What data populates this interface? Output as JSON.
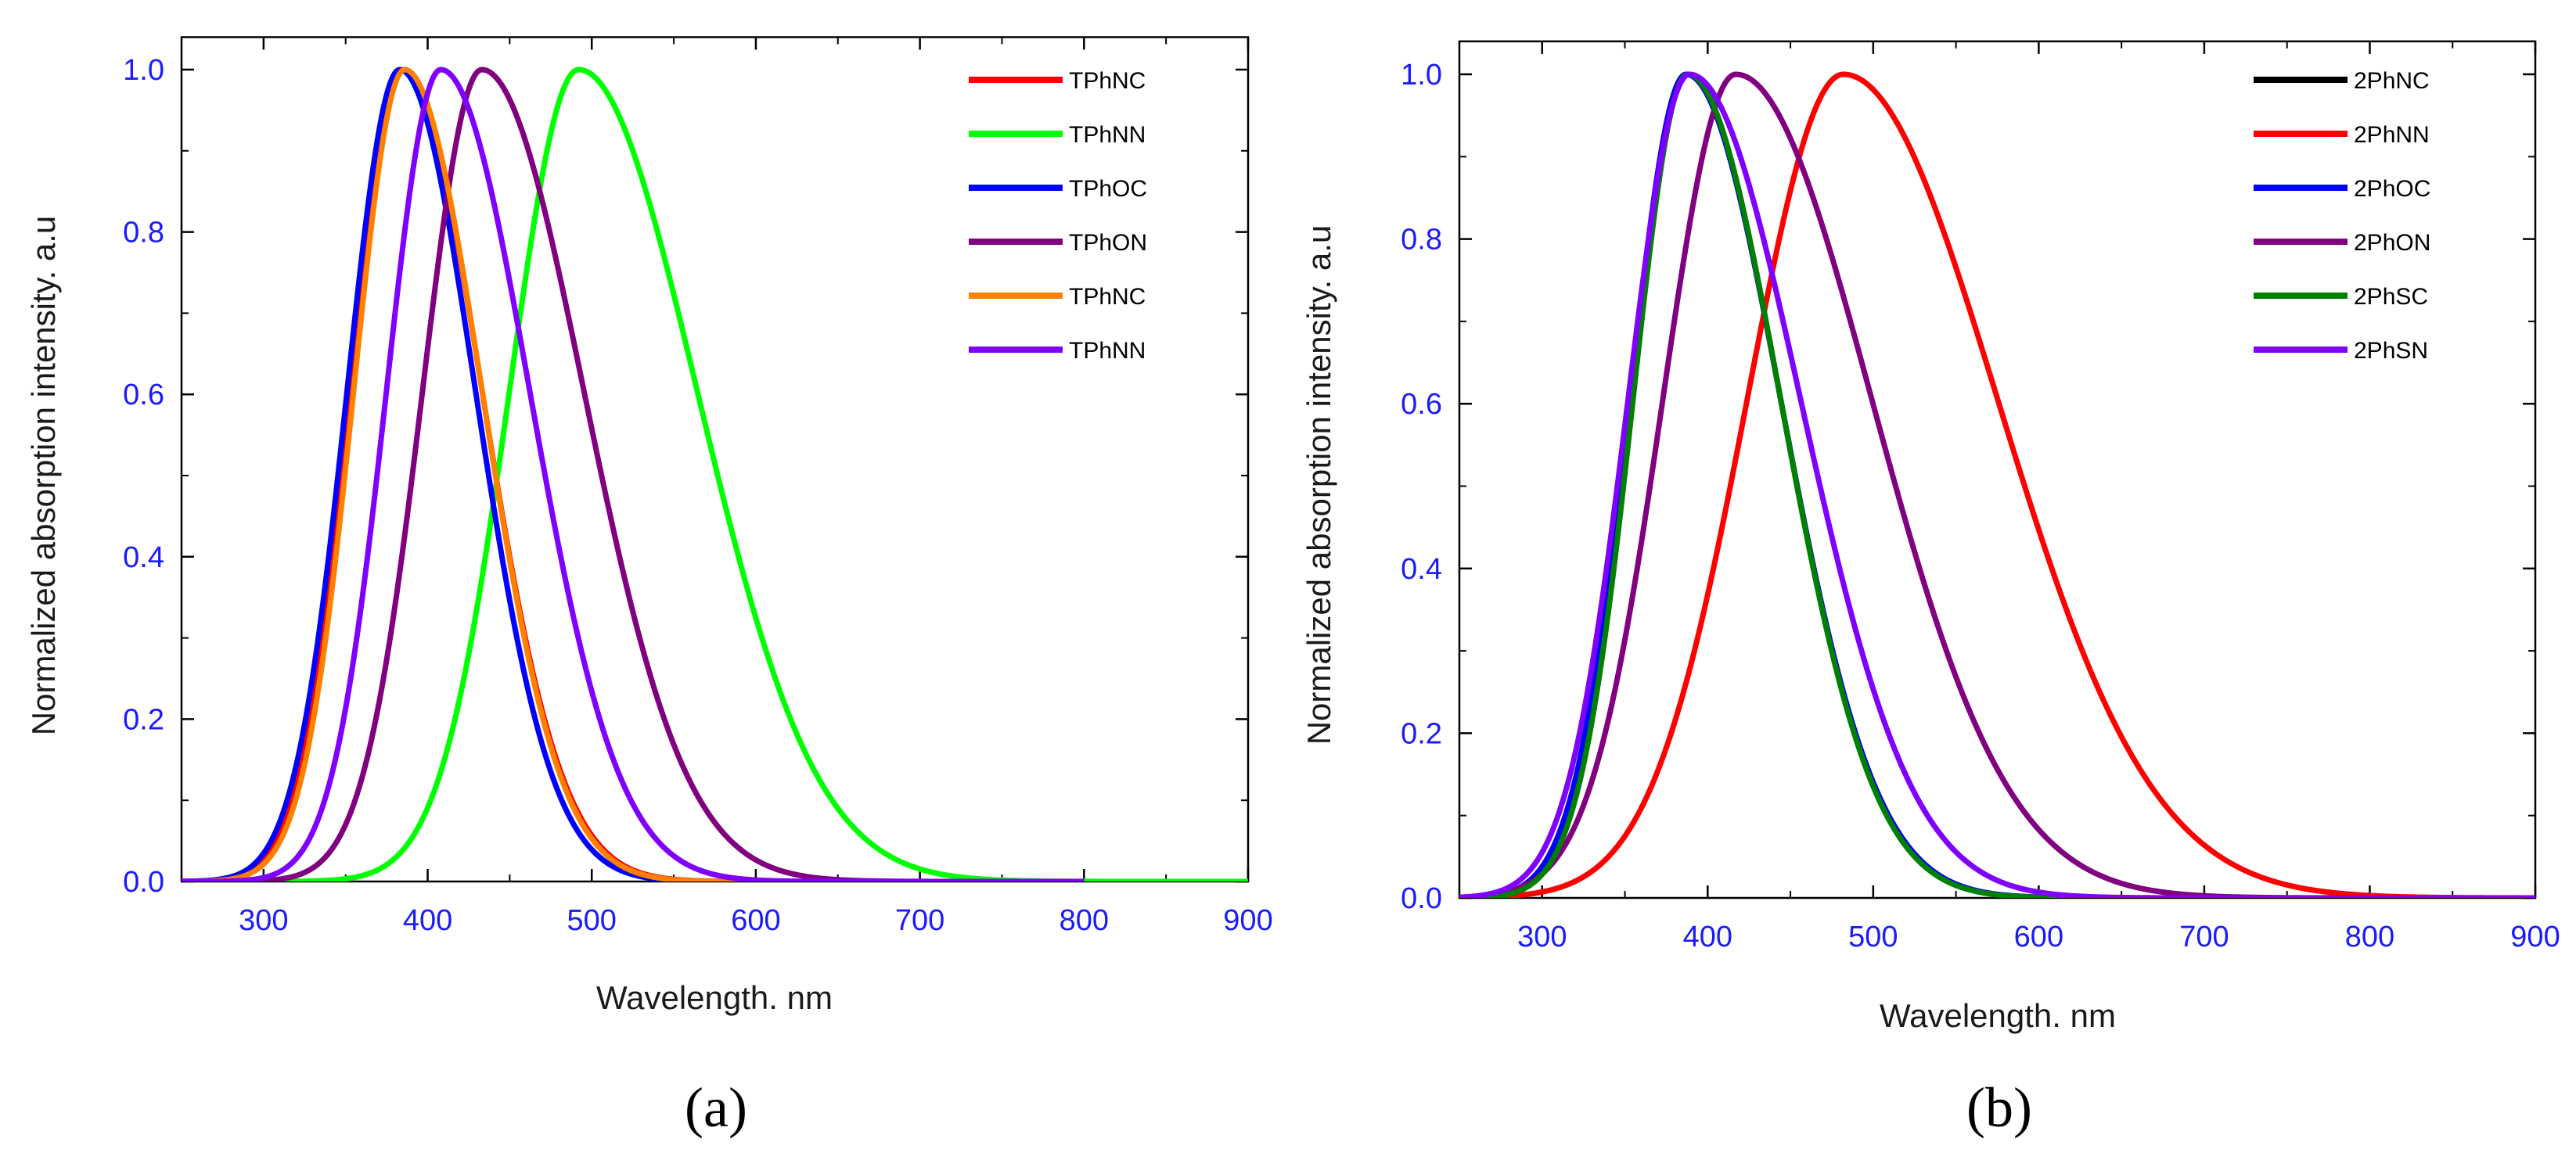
{
  "chart_data": [
    {
      "type": "line",
      "panel_label": "(a)",
      "xlabel": "Wavelength. nm",
      "ylabel": "Normalized absorption intensity. a.u",
      "xlim": [
        250,
        900
      ],
      "ylim": [
        0,
        1.0
      ],
      "xticks": [
        "300",
        "400",
        "500",
        "600",
        "700",
        "800",
        "900"
      ],
      "yticks": [
        "0.0",
        "0.2",
        "0.4",
        "0.6",
        "0.8",
        "1.0"
      ],
      "legend_position": "top-right",
      "series": [
        {
          "name": "TPhNC",
          "color": "#ff0000",
          "peak": 385,
          "left_width": 32,
          "right_width": 48,
          "x_end": 800
        },
        {
          "name": "TPhNN",
          "color": "#00ff00",
          "peak": 492,
          "left_width": 42,
          "right_width": 72,
          "x_end": 900
        },
        {
          "name": "TPhOC",
          "color": "#0000ff",
          "peak": 383,
          "left_width": 32,
          "right_width": 46,
          "x_end": 800
        },
        {
          "name": "TPhON",
          "color": "#800080",
          "peak": 433,
          "left_width": 36,
          "right_width": 62,
          "x_end": 800
        },
        {
          "name": "TPhNC",
          "color": "#ff8000",
          "peak": 386,
          "left_width": 31,
          "right_width": 47,
          "x_end": 800
        },
        {
          "name": "TPhNN",
          "color": "#8000ff",
          "peak": 408,
          "left_width": 33,
          "right_width": 54,
          "x_end": 800
        }
      ]
    },
    {
      "type": "line",
      "panel_label": "(b)",
      "xlabel": "Wavelength. nm",
      "ylabel": "Normalized absorption intensity. a.u",
      "xlim": [
        250,
        900
      ],
      "ylim": [
        0,
        1.0
      ],
      "xticks": [
        "300",
        "400",
        "500",
        "600",
        "700",
        "800",
        "900"
      ],
      "yticks": [
        "0.0",
        "0.2",
        "0.4",
        "0.6",
        "0.8",
        "1.0"
      ],
      "legend_position": "top-right",
      "series": [
        {
          "name": "2PhNC",
          "color": "#000000",
          "peak": 387,
          "left_width": 34,
          "right_width": 57,
          "x_end": 900
        },
        {
          "name": "2PhNN",
          "color": "#ff0000",
          "peak": 482,
          "left_width": 58,
          "right_width": 93,
          "x_end": 900
        },
        {
          "name": "2PhOC",
          "color": "#0000ff",
          "peak": 387,
          "left_width": 34,
          "right_width": 57,
          "x_end": 900
        },
        {
          "name": "2PhON",
          "color": "#800080",
          "peak": 417,
          "left_width": 44,
          "right_width": 82,
          "x_end": 900
        },
        {
          "name": "2PhSC",
          "color": "#008000",
          "peak": 388,
          "left_width": 33,
          "right_width": 56,
          "x_end": 900
        },
        {
          "name": "2PhSN",
          "color": "#8000ff",
          "peak": 389,
          "left_width": 37,
          "right_width": 67,
          "x_end": 900
        }
      ]
    }
  ]
}
